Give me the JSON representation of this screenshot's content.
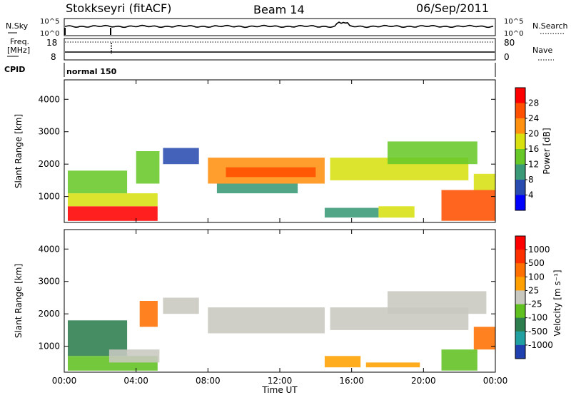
{
  "header": {
    "station": "Stokkseyri (fitACF)",
    "beam": "Beam 14",
    "date": "06/Sep/2011"
  },
  "status_panels": {
    "nsky": {
      "label": "N.Sky",
      "tick_top": "10^5",
      "tick_bottom": "10^0",
      "right_label": "N.Search",
      "right_tick_top": "10^5",
      "right_tick_bottom": "10^0"
    },
    "freq": {
      "label_line1": "Freq.",
      "label_line2": "[MHz]",
      "tick_top": "18",
      "tick_bottom": "8",
      "right_label": "Nave",
      "right_tick_top": "80",
      "right_tick_bottom": "0"
    },
    "cpid": {
      "label": "CPID",
      "value": "normal 150"
    }
  },
  "chart_data": [
    {
      "type": "heatmap",
      "panel": "power",
      "ylabel": "Slant Range [km]",
      "xlabel": "",
      "yticks": [
        "1000",
        "2000",
        "3000",
        "4000"
      ],
      "xticks": [
        "00:00",
        "04:00",
        "08:00",
        "12:00",
        "16:00",
        "20:00",
        "00:00"
      ],
      "ylim": [
        200,
        4600
      ],
      "xlim": [
        0,
        24
      ],
      "colorbar": {
        "label": "Power [dB]",
        "ticks": [
          "4",
          "8",
          "12",
          "16",
          "20",
          "24",
          "28"
        ],
        "colors": [
          "#0000ff",
          "#2a4cb0",
          "#3a9a78",
          "#68c828",
          "#d8e010",
          "#ff9010",
          "#ff5000",
          "#ff0000"
        ]
      },
      "regions": [
        {
          "x0": 0.2,
          "x1": 5.2,
          "y0": 250,
          "y1": 700,
          "level": 7
        },
        {
          "x0": 0.2,
          "x1": 5.2,
          "y0": 700,
          "y1": 1100,
          "level": 4
        },
        {
          "x0": 0.2,
          "x1": 3.5,
          "y0": 1100,
          "y1": 1800,
          "level": 3
        },
        {
          "x0": 4.0,
          "x1": 5.3,
          "y0": 1400,
          "y1": 2400,
          "level": 3
        },
        {
          "x0": 5.5,
          "x1": 7.5,
          "y0": 2000,
          "y1": 2500,
          "level": 1
        },
        {
          "x0": 8.0,
          "x1": 14.5,
          "y0": 1400,
          "y1": 2200,
          "level": 5
        },
        {
          "x0": 9.0,
          "x1": 14.0,
          "y0": 1600,
          "y1": 1900,
          "level": 6
        },
        {
          "x0": 8.5,
          "x1": 13.0,
          "y0": 1100,
          "y1": 1400,
          "level": 2
        },
        {
          "x0": 14.8,
          "x1": 22.5,
          "y0": 1500,
          "y1": 2200,
          "level": 4
        },
        {
          "x0": 18.0,
          "x1": 23.0,
          "y0": 2000,
          "y1": 2700,
          "level": 3
        },
        {
          "x0": 14.5,
          "x1": 17.5,
          "y0": 350,
          "y1": 650,
          "level": 2
        },
        {
          "x0": 17.5,
          "x1": 19.5,
          "y0": 350,
          "y1": 700,
          "level": 4
        },
        {
          "x0": 21.0,
          "x1": 24.0,
          "y0": 250,
          "y1": 1200,
          "level": 6
        },
        {
          "x0": 22.8,
          "x1": 24.0,
          "y0": 1200,
          "y1": 1700,
          "level": 4
        }
      ]
    },
    {
      "type": "heatmap",
      "panel": "velocity",
      "ylabel": "Slant Range [km]",
      "xlabel": "Time UT",
      "yticks": [
        "1000",
        "2000",
        "3000",
        "4000"
      ],
      "xticks": [
        "00:00",
        "04:00",
        "08:00",
        "12:00",
        "16:00",
        "20:00",
        "00:00"
      ],
      "ylim": [
        200,
        4600
      ],
      "xlim": [
        0,
        24
      ],
      "colorbar": {
        "label": "Velocity [m s⁻¹]",
        "ticks": [
          "1000",
          "500",
          "100",
          "25",
          "-25",
          "-100",
          "-500",
          "-1000"
        ],
        "colors": [
          "#2040b0",
          "#20a0a0",
          "#2e7d4f",
          "#60c020",
          "#c8c8c0",
          "#ffa000",
          "#ff7000",
          "#ff3000",
          "#ff0000"
        ]
      },
      "regions": [
        {
          "x0": 0.2,
          "x1": 3.5,
          "y0": 700,
          "y1": 1800,
          "level": 2
        },
        {
          "x0": 0.2,
          "x1": 5.2,
          "y0": 250,
          "y1": 700,
          "level": 3
        },
        {
          "x0": 2.5,
          "x1": 5.3,
          "y0": 500,
          "y1": 900,
          "level": 4
        },
        {
          "x0": 4.2,
          "x1": 5.2,
          "y0": 1600,
          "y1": 2400,
          "level": 6
        },
        {
          "x0": 5.5,
          "x1": 7.5,
          "y0": 2000,
          "y1": 2500,
          "level": 4
        },
        {
          "x0": 8.0,
          "x1": 14.5,
          "y0": 1400,
          "y1": 2200,
          "level": 4
        },
        {
          "x0": 14.8,
          "x1": 22.5,
          "y0": 1500,
          "y1": 2200,
          "level": 4
        },
        {
          "x0": 18.0,
          "x1": 23.5,
          "y0": 2000,
          "y1": 2700,
          "level": 4
        },
        {
          "x0": 14.5,
          "x1": 16.5,
          "y0": 350,
          "y1": 700,
          "level": 5
        },
        {
          "x0": 16.8,
          "x1": 19.8,
          "y0": 350,
          "y1": 500,
          "level": 5
        },
        {
          "x0": 21.0,
          "x1": 23.0,
          "y0": 250,
          "y1": 900,
          "level": 3
        },
        {
          "x0": 22.8,
          "x1": 24.0,
          "y0": 900,
          "y1": 1600,
          "level": 6
        }
      ]
    }
  ]
}
